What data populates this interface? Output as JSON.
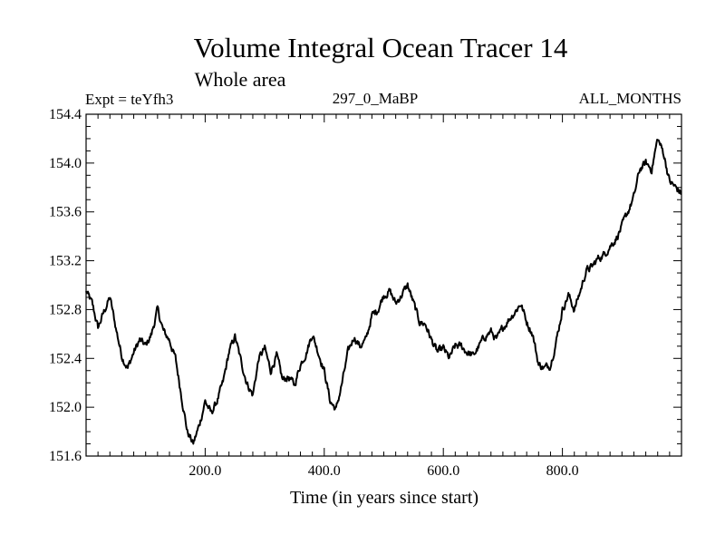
{
  "chart_data": {
    "type": "line",
    "title": "Volume Integral Ocean Tracer 14",
    "subtitle": "Whole area",
    "expt_label": "Expt = teYfh3",
    "run_label": "297_0_MaBP",
    "months_label": "ALL_MONTHS",
    "xlabel": "Time (in years since start)",
    "ylabel": "",
    "xlim": [
      0,
      1000
    ],
    "ylim": [
      151.6,
      154.4
    ],
    "x_ticks": [
      200,
      400,
      600,
      800
    ],
    "x_tick_labels": [
      "200.0",
      "400.0",
      "600.0",
      "800.0"
    ],
    "y_ticks": [
      151.6,
      152.0,
      152.4,
      152.8,
      153.2,
      153.6,
      154.0,
      154.4
    ],
    "y_tick_labels": [
      "151.6",
      "152.0",
      "152.4",
      "152.8",
      "153.2",
      "153.6",
      "154.0",
      "154.4"
    ],
    "grid": false,
    "series": [
      {
        "name": "Volume Integral Ocean Tracer 14",
        "x": [
          0,
          10,
          20,
          30,
          40,
          50,
          60,
          70,
          80,
          90,
          100,
          110,
          120,
          130,
          140,
          150,
          160,
          170,
          180,
          190,
          200,
          210,
          220,
          230,
          240,
          250,
          260,
          270,
          280,
          290,
          300,
          310,
          320,
          330,
          340,
          350,
          360,
          370,
          380,
          390,
          400,
          410,
          420,
          430,
          440,
          450,
          460,
          470,
          480,
          490,
          500,
          510,
          520,
          530,
          540,
          550,
          560,
          570,
          580,
          590,
          600,
          610,
          620,
          630,
          640,
          650,
          660,
          670,
          680,
          690,
          700,
          710,
          720,
          730,
          740,
          750,
          760,
          770,
          780,
          790,
          800,
          810,
          820,
          830,
          840,
          850,
          860,
          870,
          880,
          890,
          900,
          910,
          920,
          930,
          940,
          950,
          960,
          970,
          980,
          990,
          1000
        ],
        "values": [
          152.95,
          152.85,
          152.65,
          152.78,
          152.9,
          152.65,
          152.42,
          152.32,
          152.45,
          152.55,
          152.5,
          152.6,
          152.8,
          152.62,
          152.55,
          152.4,
          152.1,
          151.8,
          151.7,
          151.85,
          152.05,
          151.95,
          152.05,
          152.2,
          152.45,
          152.58,
          152.38,
          152.2,
          152.1,
          152.4,
          152.48,
          152.3,
          152.42,
          152.22,
          152.25,
          152.18,
          152.35,
          152.45,
          152.6,
          152.45,
          152.3,
          152.05,
          151.98,
          152.2,
          152.45,
          152.58,
          152.5,
          152.55,
          152.75,
          152.8,
          152.92,
          152.95,
          152.85,
          152.92,
          153.0,
          152.85,
          152.7,
          152.68,
          152.55,
          152.45,
          152.48,
          152.4,
          152.5,
          152.5,
          152.45,
          152.42,
          152.5,
          152.58,
          152.62,
          152.55,
          152.65,
          152.72,
          152.78,
          152.85,
          152.7,
          152.6,
          152.35,
          152.32,
          152.35,
          152.55,
          152.8,
          152.92,
          152.8,
          152.95,
          153.12,
          153.15,
          153.22,
          153.25,
          153.32,
          153.38,
          153.48,
          153.6,
          153.72,
          153.95,
          154.0,
          153.95,
          154.2,
          154.08,
          153.85,
          153.8,
          153.75
        ]
      }
    ]
  }
}
